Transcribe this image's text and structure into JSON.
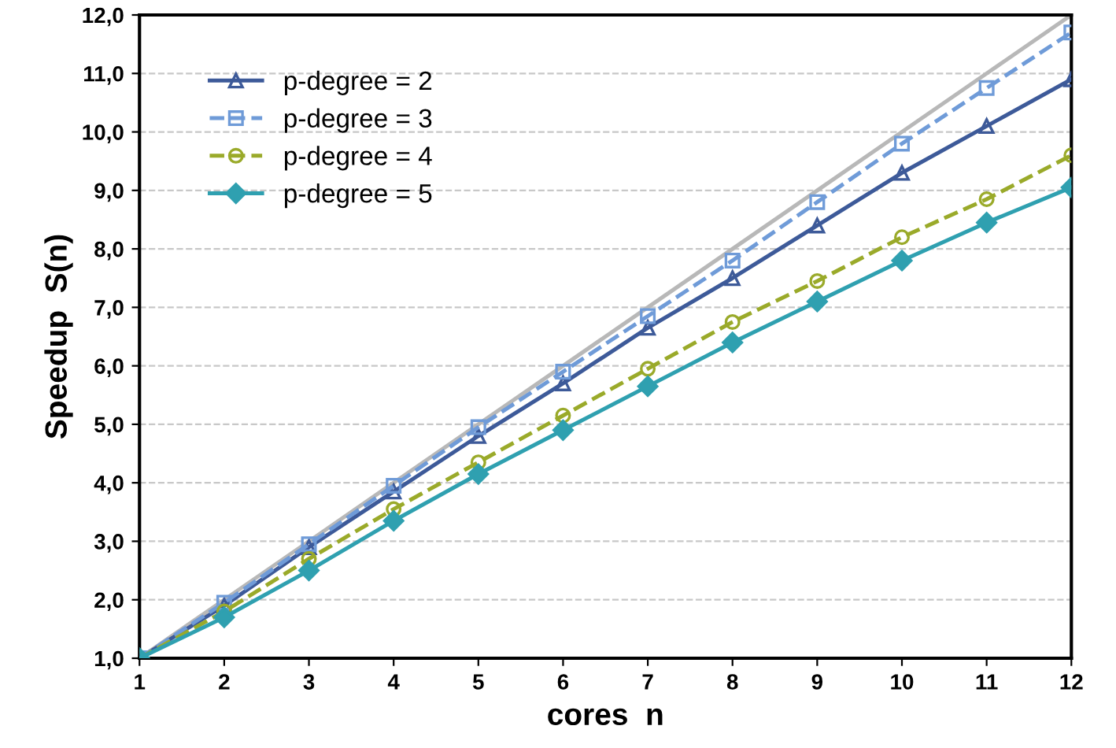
{
  "chart_data": {
    "type": "line",
    "xlabel": "cores  n",
    "ylabel": "Speedup  S(n)",
    "x": [
      1,
      2,
      3,
      4,
      5,
      6,
      7,
      8,
      9,
      10,
      11,
      12
    ],
    "series": [
      {
        "name": "p-degree = 2",
        "color": "#3d5a99",
        "marker": "triangle",
        "line_style": "solid",
        "values": [
          1,
          1.9,
          2.9,
          3.85,
          4.8,
          5.7,
          6.65,
          7.5,
          8.4,
          9.3,
          10.1,
          10.9
        ]
      },
      {
        "name": "p-degree = 3",
        "color": "#6f9bd8",
        "marker": "square",
        "line_style": "dashed",
        "values": [
          1,
          1.95,
          2.95,
          3.95,
          4.95,
          5.9,
          6.85,
          7.8,
          8.8,
          9.8,
          10.75,
          11.7
        ]
      },
      {
        "name": "p-degree = 4",
        "color": "#9aaa2a",
        "marker": "circle",
        "line_style": "dashed",
        "values": [
          1,
          1.8,
          2.7,
          3.55,
          4.35,
          5.15,
          5.95,
          6.75,
          7.45,
          8.2,
          8.85,
          9.6
        ]
      },
      {
        "name": "p-degree = 5",
        "color": "#2fa0b0",
        "marker": "diamond",
        "line_style": "solid",
        "values": [
          1,
          1.7,
          2.5,
          3.35,
          4.15,
          4.9,
          5.65,
          6.4,
          7.1,
          7.8,
          8.45,
          9.05
        ]
      },
      {
        "color": "#b8b8b8",
        "marker": "none",
        "line_style": "solid",
        "values": [
          1,
          2,
          3,
          4,
          5,
          6,
          7,
          8,
          9,
          10,
          11,
          12
        ]
      }
    ],
    "xlim": [
      1,
      12
    ],
    "xticks": [
      1,
      2,
      3,
      4,
      5,
      6,
      7,
      8,
      9,
      10,
      11,
      12
    ],
    "ylim": [
      1,
      12
    ],
    "yticks": [
      {
        "value": 1,
        "label": "1,0"
      },
      {
        "value": 2,
        "label": "2,0"
      },
      {
        "value": 3,
        "label": "3,0"
      },
      {
        "value": 4,
        "label": "4,0"
      },
      {
        "value": 5,
        "label": "5,0"
      },
      {
        "value": 6,
        "label": "6,0"
      },
      {
        "value": 7,
        "label": "7,0"
      },
      {
        "value": 8,
        "label": "8,0"
      },
      {
        "value": 9,
        "label": "9,0"
      },
      {
        "value": 10,
        "label": "10,0"
      },
      {
        "value": 11,
        "label": "11,0"
      },
      {
        "value": 12,
        "label": "12,0"
      }
    ],
    "grid": "y",
    "legend": "top left"
  }
}
